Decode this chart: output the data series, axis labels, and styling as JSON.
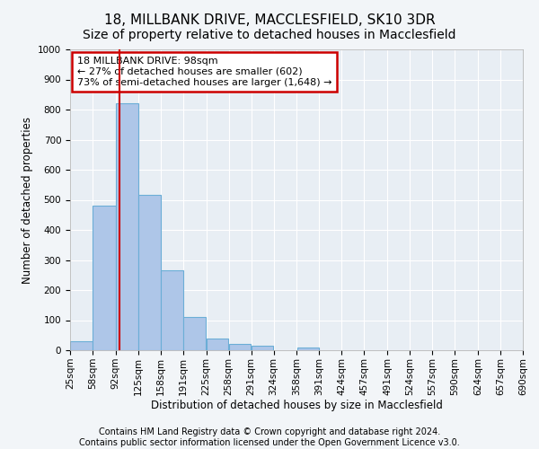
{
  "title1": "18, MILLBANK DRIVE, MACCLESFIELD, SK10 3DR",
  "title2": "Size of property relative to detached houses in Macclesfield",
  "xlabel": "Distribution of detached houses by size in Macclesfield",
  "ylabel": "Number of detached properties",
  "footer1": "Contains HM Land Registry data © Crown copyright and database right 2024.",
  "footer2": "Contains public sector information licensed under the Open Government Licence v3.0.",
  "annotation_line1": "18 MILLBANK DRIVE: 98sqm",
  "annotation_line2": "← 27% of detached houses are smaller (602)",
  "annotation_line3": "73% of semi-detached houses are larger (1,648) →",
  "property_size": 98,
  "bar_edges": [
    25,
    58,
    92,
    125,
    158,
    191,
    225,
    258,
    291,
    324,
    358,
    391,
    424,
    457,
    491,
    524,
    557,
    590,
    624,
    657,
    690
  ],
  "bar_heights": [
    30,
    480,
    820,
    515,
    265,
    110,
    40,
    20,
    15,
    0,
    10,
    0,
    0,
    0,
    0,
    0,
    0,
    0,
    0,
    0
  ],
  "bar_color": "#aec6e8",
  "bar_edge_color": "#6baed6",
  "vline_color": "#cc0000",
  "vline_x": 98,
  "ylim": [
    0,
    1000
  ],
  "yticks": [
    0,
    100,
    200,
    300,
    400,
    500,
    600,
    700,
    800,
    900,
    1000
  ],
  "background_color": "#f2f5f8",
  "plot_bg_color": "#e8eef4",
  "grid_color": "#ffffff",
  "annotation_box_edge_color": "#cc0000",
  "annotation_box_face_color": "#ffffff",
  "title1_fontsize": 11,
  "title2_fontsize": 10,
  "axis_label_fontsize": 8.5,
  "tick_fontsize": 7.5,
  "footer_fontsize": 7,
  "annotation_fontsize": 8
}
